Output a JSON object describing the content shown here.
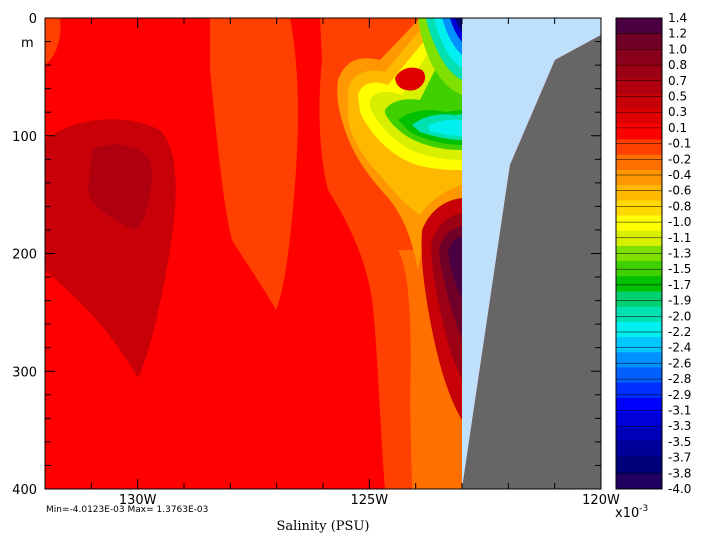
{
  "chart_data": {
    "type": "heatmap",
    "xlabel": "Salinity (PSU)",
    "y_unit_label": "m",
    "x_ticks": [
      "130W",
      "125W",
      "120W"
    ],
    "x_tick_values": [
      -130,
      -125,
      -120
    ],
    "xlim": [
      -132,
      -120
    ],
    "y_ticks": [
      "0",
      "100",
      "200",
      "300",
      "400"
    ],
    "y_tick_values": [
      0,
      100,
      200,
      300,
      400
    ],
    "ylim": [
      400,
      0
    ],
    "stats_text": "Min=-4.0123E-03  Max= 1.3763E-03",
    "min": -0.0040123,
    "max": 0.0013763,
    "colorbar_exponent": "x10",
    "colorbar_exponent_power": "-3",
    "colorbar_levels": [
      "1.4",
      "1.2",
      "1.0",
      "0.8",
      "0.7",
      "0.5",
      "0.3",
      "0.1",
      "-0.1",
      "-0.2",
      "-0.4",
      "-0.6",
      "-0.8",
      "-1.0",
      "-1.1",
      "-1.3",
      "-1.5",
      "-1.7",
      "-1.9",
      "-2.0",
      "-2.2",
      "-2.4",
      "-2.6",
      "-2.8",
      "-2.9",
      "-3.1",
      "-3.3",
      "-3.5",
      "-3.7",
      "-3.8",
      "-4.0"
    ],
    "colorbar_colors": [
      "#4a0040",
      "#700028",
      "#88001c",
      "#9c0014",
      "#b00010",
      "#c80008",
      "#e00000",
      "#ff0000",
      "#ff4000",
      "#ff7000",
      "#ff9800",
      "#ffb800",
      "#ffd800",
      "#ffff00",
      "#d8f000",
      "#80e000",
      "#40d000",
      "#00c000",
      "#00d070",
      "#00e0b0",
      "#00f0f0",
      "#00c8ff",
      "#0090ff",
      "#0060ff",
      "#0030ff",
      "#0000ff",
      "#0000d8",
      "#0000b8",
      "#000098",
      "#000078",
      "#200060"
    ],
    "land_color": "#666666",
    "no_data_color": "#bfe0fa"
  }
}
